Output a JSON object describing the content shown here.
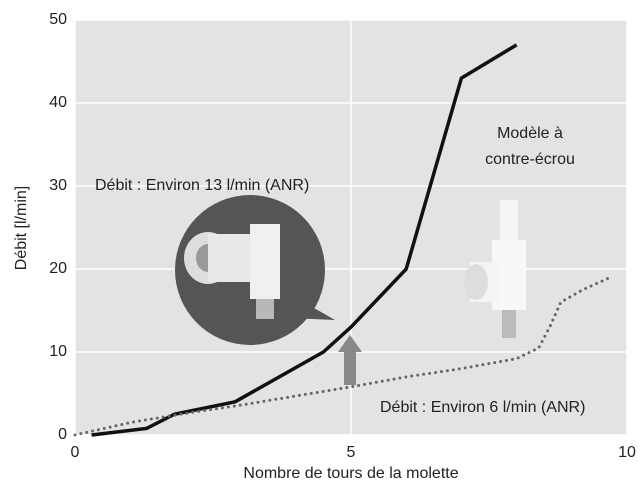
{
  "chart_data": {
    "type": "line",
    "x_label": "Nombre de tours de la molette",
    "y_label": "Débit [l/min]",
    "xlim": [
      0,
      10
    ],
    "xticks": [
      0,
      5,
      10
    ],
    "ylim": [
      0,
      50
    ],
    "yticks": [
      0,
      10,
      20,
      30,
      40,
      50
    ],
    "grid": true,
    "series": [
      {
        "color": "#111111",
        "style": "solid",
        "x": [
          0.3,
          1.3,
          1.8,
          2.9,
          4.5,
          5,
          6,
          7,
          8
        ],
        "values": [
          0,
          0.8,
          2.5,
          4,
          10,
          13,
          20,
          43,
          47
        ]
      },
      {
        "color": "#666666",
        "style": "dotted",
        "x": [
          0,
          1,
          2,
          3,
          4,
          5,
          6,
          7,
          8,
          8.4,
          8.6,
          8.8,
          9.2,
          9.7
        ],
        "values": [
          0,
          1.5,
          2.6,
          3.6,
          4.7,
          5.8,
          7,
          8,
          9.2,
          10.5,
          13,
          16,
          17.5,
          19
        ]
      }
    ],
    "annotations": [
      "Débit : Environ 13 l/min (ANR)",
      "Modèle à",
      "contre-écrou",
      "Débit : Environ 6 l/min (ANR)"
    ]
  }
}
